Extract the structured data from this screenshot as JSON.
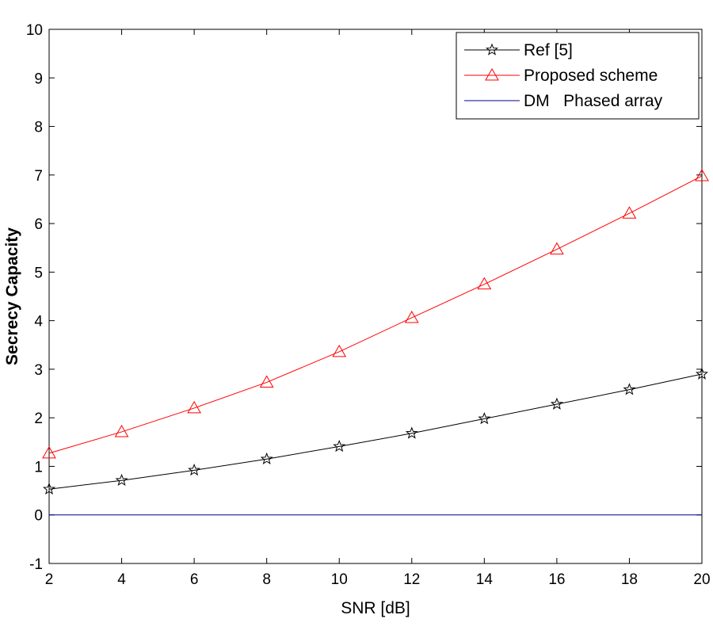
{
  "chart_data": {
    "type": "line",
    "xlabel": "SNR [dB]",
    "ylabel": "Secrecy Capacity",
    "xlim": [
      2,
      20
    ],
    "ylim": [
      -1,
      10
    ],
    "xticks": [
      2,
      4,
      6,
      8,
      10,
      12,
      14,
      16,
      18,
      20
    ],
    "yticks": [
      -1,
      0,
      1,
      2,
      3,
      4,
      5,
      6,
      7,
      8,
      9,
      10
    ],
    "x": [
      2,
      4,
      6,
      8,
      10,
      12,
      14,
      16,
      18,
      20
    ],
    "grid": false,
    "legend_position": "top-right",
    "series": [
      {
        "name": "Ref [5]",
        "color": "#000000",
        "marker": "star",
        "values": [
          0.53,
          0.71,
          0.92,
          1.15,
          1.41,
          1.68,
          1.98,
          2.28,
          2.58,
          2.9
        ]
      },
      {
        "name": "Proposed scheme",
        "color": "#ff0000",
        "marker": "triangle",
        "values": [
          1.27,
          1.71,
          2.2,
          2.73,
          3.36,
          4.06,
          4.75,
          5.47,
          6.21,
          6.98
        ]
      },
      {
        "name": "DM   Phased array",
        "color": "#00008b",
        "marker": "none",
        "values": [
          0,
          0,
          0,
          0,
          0,
          0,
          0,
          0,
          0,
          0
        ]
      }
    ]
  }
}
